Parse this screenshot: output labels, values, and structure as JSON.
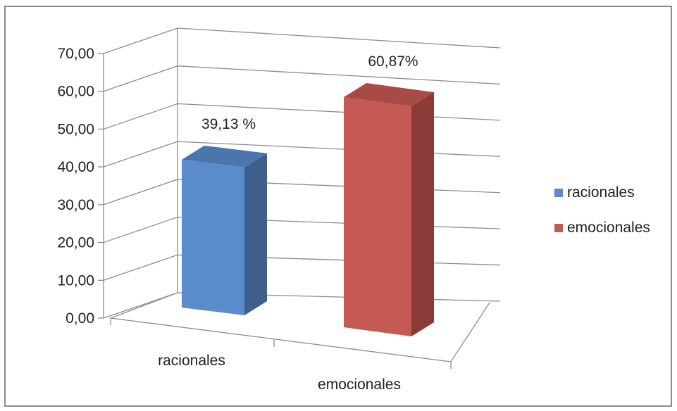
{
  "chart_data": {
    "type": "bar",
    "categories": [
      "racionales",
      "emocionales"
    ],
    "values": [
      39.13,
      60.87
    ],
    "data_labels": [
      "39,13 %",
      "60,87%"
    ],
    "ylim": [
      0,
      70
    ],
    "yticks": [
      "0,00",
      "10,00",
      "20,00",
      "30,00",
      "40,00",
      "50,00",
      "60,00",
      "70,00"
    ],
    "grid": true,
    "legend_position": "right",
    "legend": [
      "racionales",
      "emocionales"
    ],
    "colors": {
      "racionales": {
        "front": "#5a8ccc",
        "side": "#3c5f8c",
        "top": "#4a76ad"
      },
      "emocionales": {
        "front": "#c55a55",
        "side": "#8a3b38",
        "top": "#a84a46"
      }
    }
  }
}
